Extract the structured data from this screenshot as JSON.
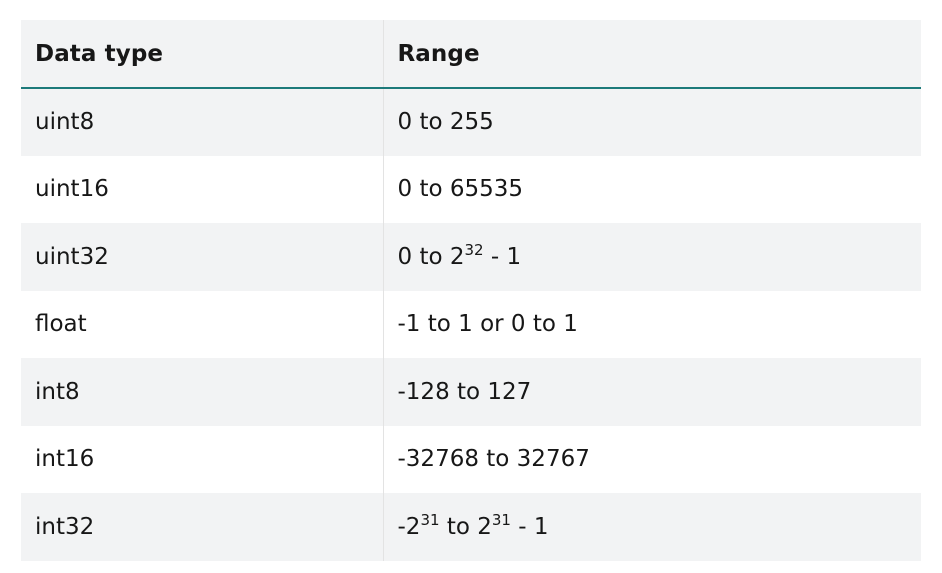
{
  "table": {
    "headers": [
      "Data type",
      "Range"
    ],
    "rows": [
      {
        "type": "uint8",
        "range": {
          "parts": [
            {
              "t": "0 to 255"
            }
          ]
        }
      },
      {
        "type": "uint16",
        "range": {
          "parts": [
            {
              "t": "0 to 65535"
            }
          ]
        }
      },
      {
        "type": "uint32",
        "range": {
          "parts": [
            {
              "t": "0 to 2"
            },
            {
              "sup": "32"
            },
            {
              "t": " - 1"
            }
          ]
        }
      },
      {
        "type": "float",
        "range": {
          "parts": [
            {
              "t": "-1 to 1 or 0 to 1"
            }
          ]
        }
      },
      {
        "type": "int8",
        "range": {
          "parts": [
            {
              "t": "-128 to 127"
            }
          ]
        }
      },
      {
        "type": "int16",
        "range": {
          "parts": [
            {
              "t": "-32768 to 32767"
            }
          ]
        }
      },
      {
        "type": "int32",
        "range": {
          "parts": [
            {
              "t": "-2"
            },
            {
              "sup": "31"
            },
            {
              "t": " to 2"
            },
            {
              "sup": "31"
            },
            {
              "t": " - 1"
            }
          ]
        }
      }
    ]
  },
  "colors": {
    "header_border": "#1d7a7a",
    "stripe": "#f2f3f4",
    "text": "#171717"
  }
}
